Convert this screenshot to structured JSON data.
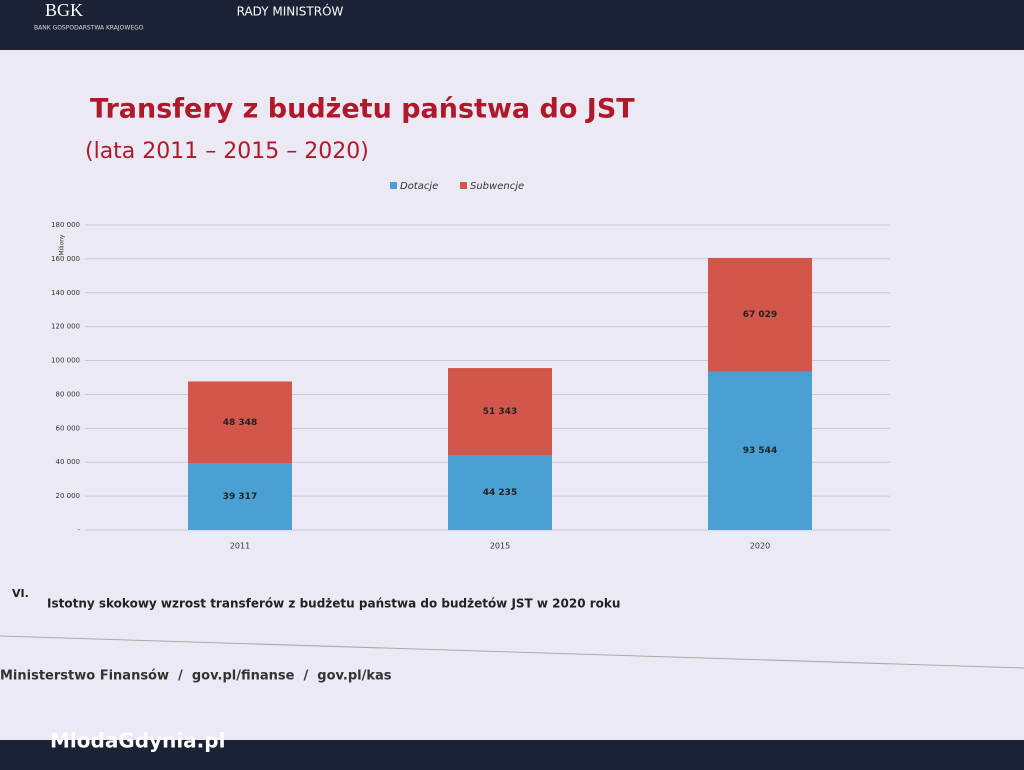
{
  "header": {
    "logo": "BGK",
    "logo_sub": "BANK GOSPODARSTWA KRAJOWEGO",
    "center": "RADY MINISTRÓW"
  },
  "chart_data": {
    "type": "stacked_bar",
    "title": "Transfery z budżetu państwa do JST",
    "subtitle": "(lata 2011 – 2015 – 2020)",
    "y_label": "Miliony",
    "categories": [
      "2011",
      "2015",
      "2020"
    ],
    "series": [
      {
        "name": "Dotacje",
        "color": "#4aa0d2",
        "values": [
          39317,
          44235,
          93544
        ],
        "value_labels": [
          "39 317",
          "44 235",
          "93 544"
        ]
      },
      {
        "name": "Subwencje",
        "color": "#d2574a",
        "values": [
          48348,
          51343,
          67029
        ],
        "value_labels": [
          "48 348",
          "51 343",
          "67 029"
        ]
      }
    ],
    "ylim": [
      0,
      180000
    ],
    "yticks": [
      {
        "value": 0,
        "label": "-"
      },
      {
        "value": 20000,
        "label": "20 000"
      },
      {
        "value": 40000,
        "label": "40 000"
      },
      {
        "value": 60000,
        "label": "60 000"
      },
      {
        "value": 80000,
        "label": "80 000"
      },
      {
        "value": 100000,
        "label": "100 000"
      },
      {
        "value": 120000,
        "label": "120 000"
      },
      {
        "value": 140000,
        "label": "140 000"
      },
      {
        "value": 160000,
        "label": "160 000"
      },
      {
        "value": 180000,
        "label": "180 000"
      }
    ],
    "grid": true,
    "legend": "top"
  },
  "note": {
    "number": "VI.",
    "text": "Istotny skokowy wzrost transferów z budżetu państwa do budżetów JST w 2020 roku"
  },
  "footer": {
    "text": "Ministerstwo Finansów  /  gov.pl/finanse  /  gov.pl/kas"
  },
  "watermark": "MlodaGdynia.pl"
}
